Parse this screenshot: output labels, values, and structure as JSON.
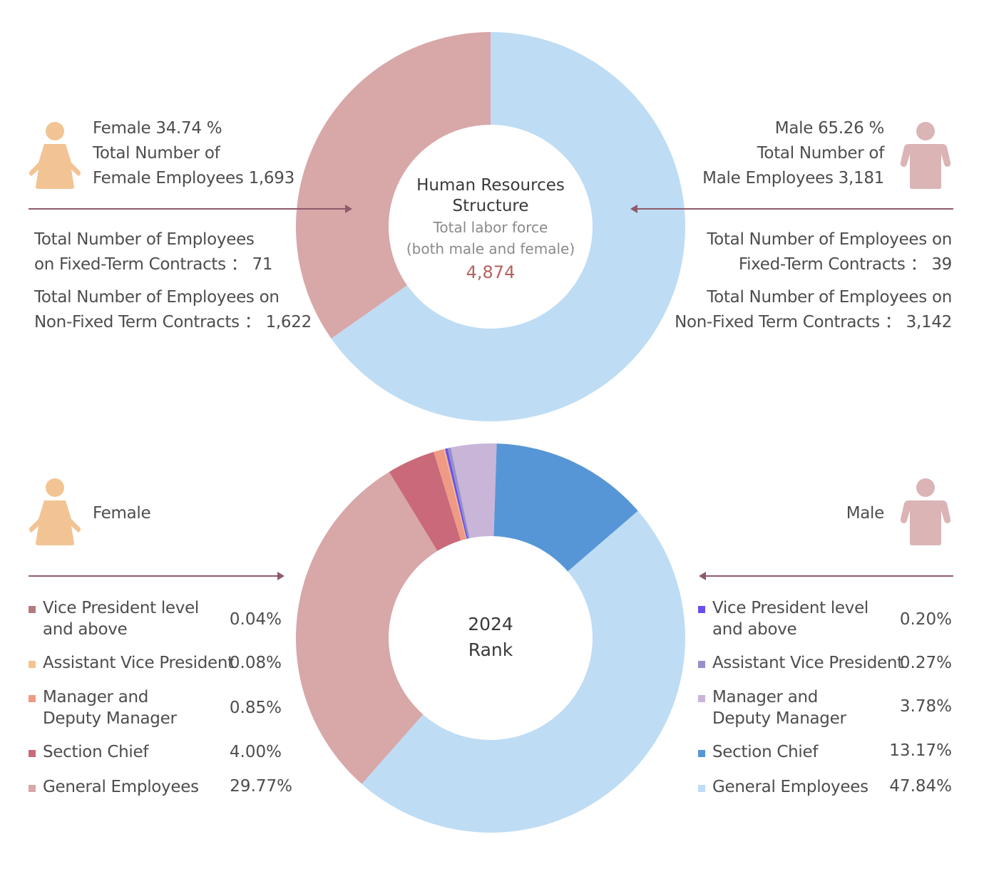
{
  "top": {
    "center_title_line1": "Human Resources",
    "center_title_line2": "Structure",
    "center_sub_line1": "Total labor force",
    "center_sub_line2": "(both male and female)",
    "center_total": "4,874",
    "female": {
      "line1": "Female 34.74 %",
      "line2": "Total Number of",
      "line3": "Female Employees 1,693",
      "fixed_line1": "Total Number of Employees",
      "fixed_line2": "on Fixed-Term Contracts ： 71",
      "nonfixed_line1": "Total Number of Employees on",
      "nonfixed_line2": "Non-Fixed Term Contracts ： 1,622",
      "icon": "female-person-icon"
    },
    "male": {
      "line1": "Male 65.26 %",
      "line2": "Total Number of",
      "line3": "Male Employees 3,181",
      "fixed_line1": "Total Number of Employees on",
      "fixed_line2": "Fixed-Term Contracts ： 39",
      "nonfixed_line1": "Total Number of Employees on",
      "nonfixed_line2": "Non-Fixed Term Contracts ： 3,142",
      "icon": "male-person-icon"
    }
  },
  "bottom": {
    "center_line1": "2024",
    "center_line2": "Rank",
    "female_label": "Female",
    "male_label": "Male",
    "female_legend": [
      {
        "label": "Vice President level\nand above",
        "pct": "0.04%",
        "color": "#b47a7e"
      },
      {
        "label": "Assistant Vice President",
        "pct": "0.08%",
        "color": "#f4c38f"
      },
      {
        "label": "Manager and\nDeputy Manager",
        "pct": "0.85%",
        "color": "#ee9a85"
      },
      {
        "label": "Section Chief",
        "pct": "4.00%",
        "color": "#c9697a"
      },
      {
        "label": "General Employees",
        "pct": "29.77%",
        "color": "#d8a7a8"
      }
    ],
    "male_legend": [
      {
        "label": "Vice President level\nand above",
        "pct": "0.20%",
        "color": "#6a4ef5"
      },
      {
        "label": "Assistant Vice President",
        "pct": "0.27%",
        "color": "#9490c8"
      },
      {
        "label": "Manager and\nDeputy Manager",
        "pct": "3.78%",
        "color": "#c8b5d8"
      },
      {
        "label": "Section Chief",
        "pct": "13.17%",
        "color": "#5796d6"
      },
      {
        "label": "General Employees",
        "pct": "47.84%",
        "color": "#bedcf4"
      }
    ]
  },
  "colors": {
    "female_icon": "#f2c494",
    "male_icon": "#dbb4b6",
    "arrow": "#8d5b6c",
    "total_accent": "#b5625e"
  },
  "chart_data": [
    {
      "type": "pie",
      "title": "Human Resources Structure",
      "subtitle": "Total labor force (both male and female)",
      "total": 4874,
      "categories": [
        "Male",
        "Female"
      ],
      "values": [
        65.26,
        34.74
      ],
      "counts": [
        3181,
        1693
      ],
      "colors": [
        "#bedcf4",
        "#d8a7a8"
      ],
      "start": "top",
      "direction": "clockwise",
      "donut": true
    },
    {
      "type": "pie",
      "title": "2024 Rank",
      "categories": [
        "Male - Vice President level and above",
        "Male - Assistant Vice President",
        "Male - Manager and Deputy Manager",
        "Male - Section Chief",
        "Male - General Employees",
        "Female - General Employees",
        "Female - Section Chief",
        "Female - Manager and Deputy Manager",
        "Female - Assistant Vice President",
        "Female - Vice President level and above"
      ],
      "values": [
        0.2,
        0.27,
        3.78,
        13.17,
        47.84,
        29.77,
        4.0,
        0.85,
        0.08,
        0.04
      ],
      "colors": [
        "#6a4ef5",
        "#9490c8",
        "#c8b5d8",
        "#5796d6",
        "#bedcf4",
        "#d8a7a8",
        "#c9697a",
        "#ee9a85",
        "#f4c38f",
        "#b47a7e"
      ],
      "start_angle_deg": -13.5,
      "direction": "clockwise",
      "donut": true
    }
  ]
}
